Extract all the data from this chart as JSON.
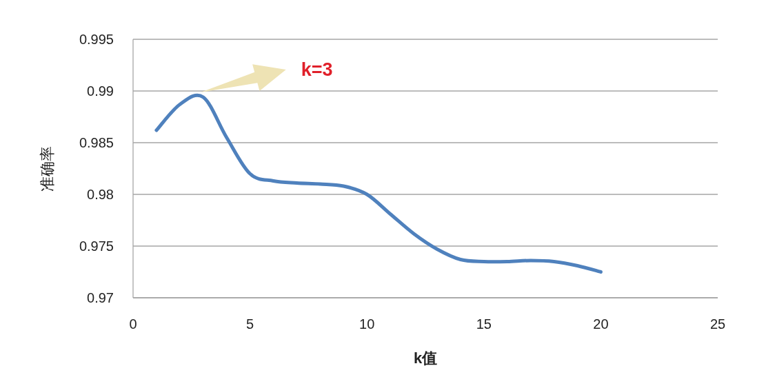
{
  "chart_data": {
    "type": "line",
    "xlabel": "k值",
    "ylabel": "准确率",
    "x": [
      1,
      2,
      3,
      4,
      5,
      6,
      7,
      8,
      9,
      10,
      11,
      12,
      13,
      14,
      15,
      16,
      17,
      18,
      19,
      20
    ],
    "series": [
      {
        "color": "#4f81bd",
        "values": [
          0.9862,
          0.9887,
          0.9894,
          0.9855,
          0.982,
          0.9813,
          0.9811,
          0.981,
          0.9808,
          0.98,
          0.9781,
          0.9762,
          0.9747,
          0.9737,
          0.9735,
          0.9735,
          0.9736,
          0.9735,
          0.9731,
          0.9725
        ]
      }
    ],
    "xlim": [
      0,
      25
    ],
    "xticks": [
      0,
      5,
      10,
      15,
      20,
      25
    ],
    "ylim": [
      0.97,
      0.995
    ],
    "yticks": [
      0.97,
      0.975,
      0.98,
      0.985,
      0.99,
      0.995
    ],
    "grid": "y",
    "line_style": "solid",
    "annotations": [
      "k=3"
    ]
  }
}
